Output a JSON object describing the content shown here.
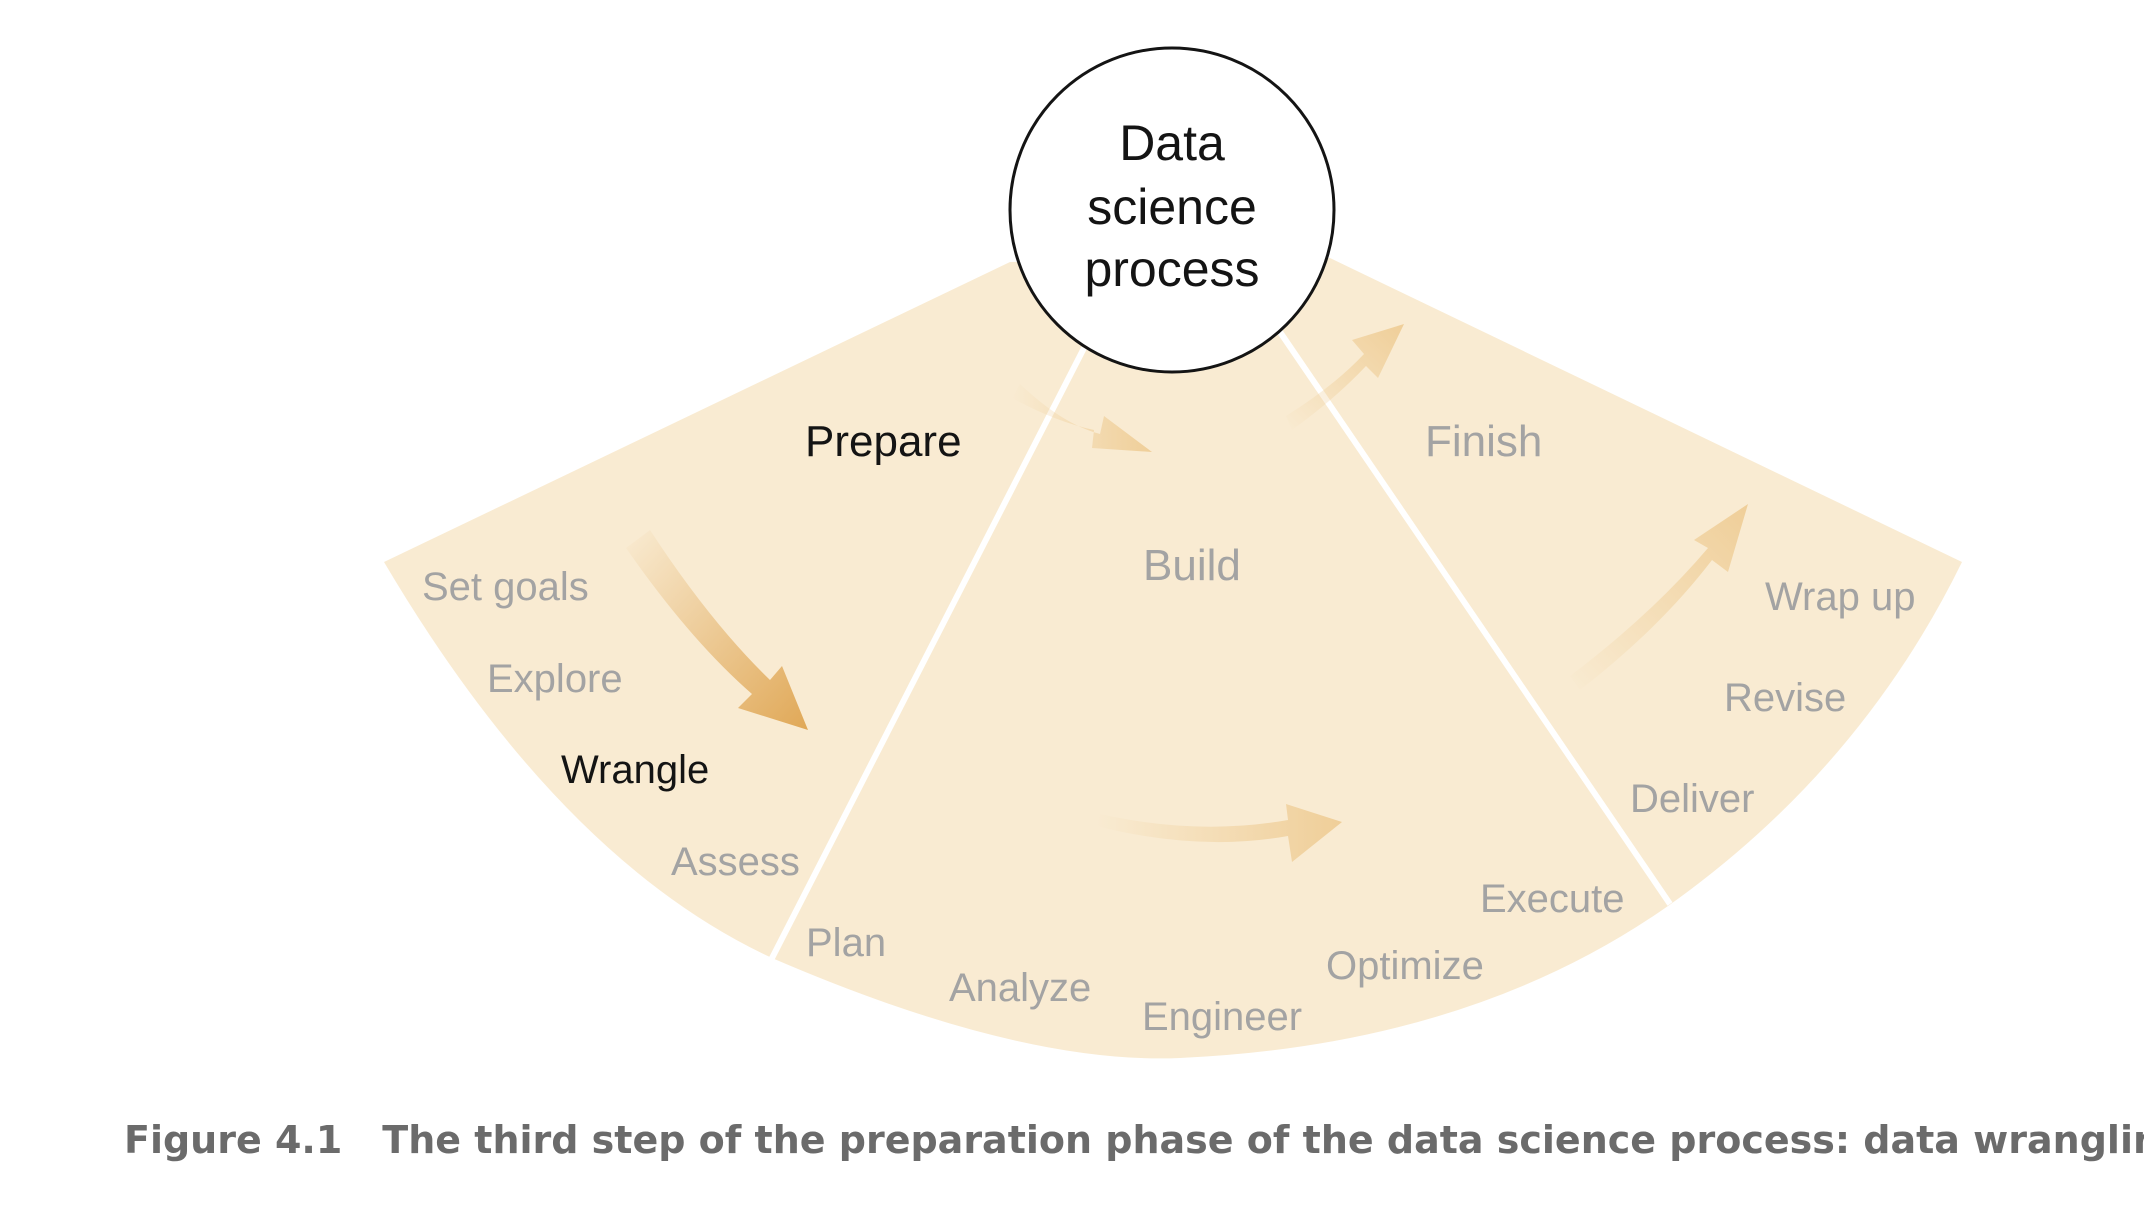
{
  "center": {
    "lines": [
      "Data",
      "science",
      "process"
    ]
  },
  "phases": {
    "prepare": "Prepare",
    "build": "Build",
    "finish": "Finish"
  },
  "steps": {
    "prepare": [
      "Set goals",
      "Explore",
      "Wrangle",
      "Assess"
    ],
    "build": [
      "Plan",
      "Analyze",
      "Engineer",
      "Optimize",
      "Execute"
    ],
    "finish": [
      "Deliver",
      "Revise",
      "Wrap up"
    ]
  },
  "highlight": {
    "phase": "Prepare",
    "step": "Wrangle"
  },
  "caption": {
    "figure_number": "Figure 4.1",
    "text": "The third step of the preparation phase of the data science process: data wrangling"
  },
  "colors": {
    "fan_fill": "#f9ebd2",
    "divider": "#ffffff",
    "arrow_active": "#e0a857",
    "arrow_faded": "#f0d4a6",
    "text_active": "#141414",
    "text_inactive": "#a3a3a3",
    "caption": "#6b6b6b"
  }
}
